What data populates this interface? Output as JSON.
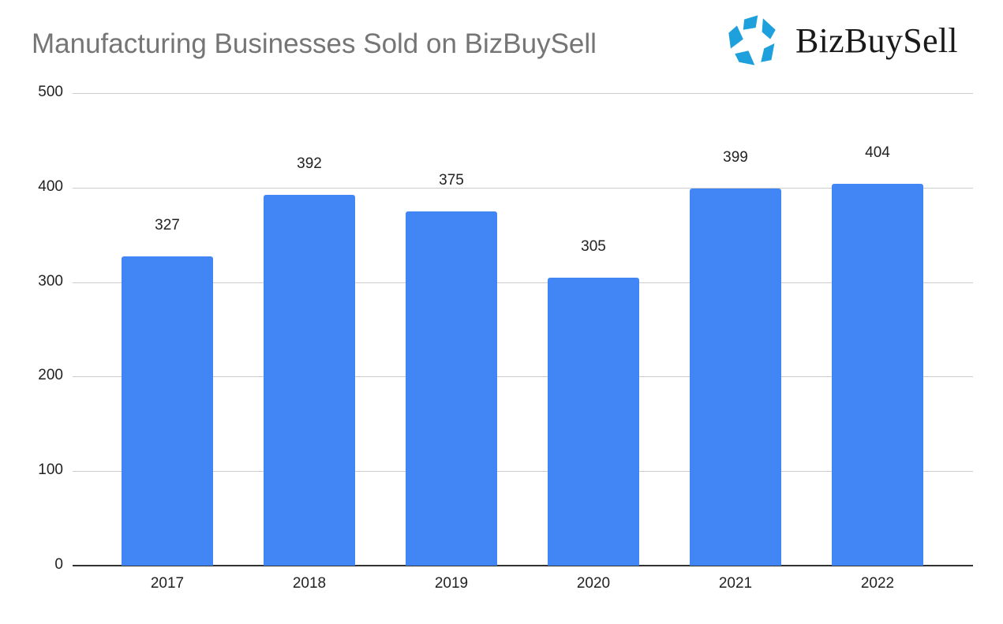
{
  "header": {
    "title": "Manufacturing Businesses Sold on BizBuySell",
    "logo_text": "BizBuySell",
    "logo_icon": "pentagon-star-icon"
  },
  "colors": {
    "bar": "#4285f4",
    "title": "#757575",
    "logo_icon": "#1ea0dc",
    "gridline": "#cccccc",
    "axis": "#333333"
  },
  "chart_data": {
    "type": "bar",
    "title": "Manufacturing Businesses Sold on BizBuySell",
    "xlabel": "",
    "ylabel": "",
    "categories": [
      "2017",
      "2018",
      "2019",
      "2020",
      "2021",
      "2022"
    ],
    "values": [
      327,
      392,
      375,
      305,
      399,
      404
    ],
    "data_labels": [
      "327",
      "392",
      "375",
      "305",
      "399",
      "404"
    ],
    "ylim": [
      0,
      500
    ],
    "yticks": [
      "0",
      "100",
      "200",
      "300",
      "400",
      "500"
    ],
    "grid": true,
    "legend": "none"
  }
}
